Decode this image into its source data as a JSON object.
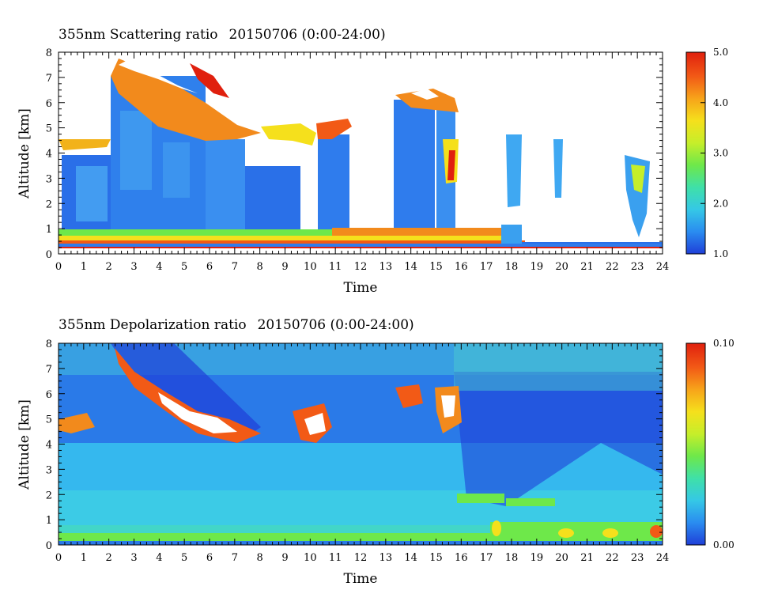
{
  "chart_data": [
    {
      "type": "heatmap",
      "title": "355nm Scattering ratio",
      "date_range": "20150706 (0:00-24:00)",
      "xlabel": "Time",
      "ylabel": "Altitude [km]",
      "xlim": [
        0,
        24
      ],
      "ylim": [
        0,
        8
      ],
      "x_ticks": [
        "0",
        "1",
        "2",
        "3",
        "4",
        "5",
        "6",
        "7",
        "8",
        "9",
        "10",
        "11",
        "12",
        "13",
        "14",
        "15",
        "16",
        "17",
        "18",
        "19",
        "20",
        "21",
        "22",
        "23",
        "24"
      ],
      "y_ticks": [
        "0",
        "1",
        "2",
        "3",
        "4",
        "5",
        "6",
        "7",
        "8"
      ],
      "colorbar": {
        "min": 1.0,
        "max": 5.0,
        "tick_labels": [
          "1.0",
          "2.0",
          "3.0",
          "4.0",
          "5.0"
        ]
      },
      "colormap": [
        "#1f3fd8",
        "#2a8cf0",
        "#35c8e6",
        "#3fe0a8",
        "#6ee84a",
        "#c6ee2a",
        "#f5e01c",
        "#f7a41a",
        "#f25a16",
        "#e0200e"
      ]
    },
    {
      "type": "heatmap",
      "title": "355nm Depolarization ratio",
      "date_range": "20150706 (0:00-24:00)",
      "xlabel": "Time",
      "ylabel": "Altitude [km]",
      "xlim": [
        0,
        24
      ],
      "ylim": [
        0,
        8
      ],
      "x_ticks": [
        "0",
        "1",
        "2",
        "3",
        "4",
        "5",
        "6",
        "7",
        "8",
        "9",
        "10",
        "11",
        "12",
        "13",
        "14",
        "15",
        "16",
        "17",
        "18",
        "19",
        "20",
        "21",
        "22",
        "23",
        "24"
      ],
      "y_ticks": [
        "0",
        "1",
        "2",
        "3",
        "4",
        "5",
        "6",
        "7",
        "8"
      ],
      "colorbar": {
        "min": 0.0,
        "max": 0.1,
        "tick_labels": [
          "0.00",
          "0.10"
        ]
      },
      "colormap": [
        "#1f3fd8",
        "#2a8cf0",
        "#35c8e6",
        "#3fe0a8",
        "#6ee84a",
        "#c6ee2a",
        "#f5e01c",
        "#f7a41a",
        "#f25a16",
        "#e0200e"
      ]
    }
  ]
}
